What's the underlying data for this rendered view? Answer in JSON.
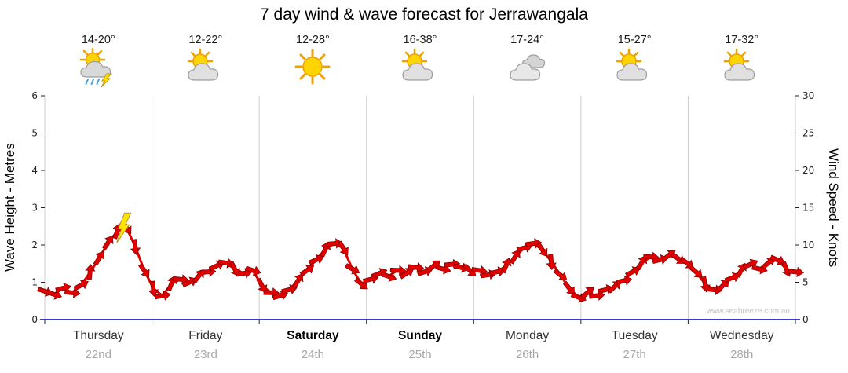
{
  "title": "7 day wind & wave forecast for Jerrawangala",
  "watermark": "www.seabreeze.com.au",
  "days": [
    {
      "name": "Thursday",
      "date": "22nd",
      "temp": "14-20°",
      "icon": "storm",
      "bold": false
    },
    {
      "name": "Friday",
      "date": "23rd",
      "temp": "12-22°",
      "icon": "sun-cloud",
      "bold": false
    },
    {
      "name": "Saturday",
      "date": "24th",
      "temp": "12-28°",
      "icon": "sunny",
      "bold": true
    },
    {
      "name": "Sunday",
      "date": "25th",
      "temp": "16-38°",
      "icon": "sun-cloud",
      "bold": true
    },
    {
      "name": "Monday",
      "date": "26th",
      "temp": "17-24°",
      "icon": "cloudy",
      "bold": false
    },
    {
      "name": "Tuesday",
      "date": "27th",
      "temp": "15-27°",
      "icon": "sun-cloud",
      "bold": false
    },
    {
      "name": "Wednesday",
      "date": "28th",
      "temp": "17-32°",
      "icon": "sun-cloud",
      "bold": false
    }
  ],
  "axes": {
    "left_label": "Wave Height - Metres",
    "left_ticks": [
      0,
      1,
      2,
      3,
      4,
      5,
      6
    ],
    "left_max": 6,
    "right_label": "Wind Speed - Knots",
    "right_ticks": [
      0,
      5,
      10,
      15,
      20,
      25,
      30
    ],
    "right_max": 30
  },
  "colors": {
    "wind": "#e10000",
    "wind_outline": "#7d0000",
    "baseline": "#3a3acc",
    "grid": "#cccccc",
    "tick": "#222222"
  },
  "chart_data": {
    "type": "line",
    "title": "7 day wind & wave forecast for Jerrawangala",
    "x_categories": [
      "Thursday 22nd",
      "Friday 23rd",
      "Saturday 24th",
      "Sunday 25th",
      "Monday 26th",
      "Tuesday 27th",
      "Wednesday 28th"
    ],
    "points_per_day": 12,
    "interval_hours": 2,
    "ylabel_left": "Wave Height - Metres",
    "ylim_left": [
      0,
      6
    ],
    "ylabel_right": "Wind Speed - Knots",
    "ylim_right": [
      0,
      30
    ],
    "legend": "none",
    "grid": "vertical-day-separators",
    "lightning_at_index": 9,
    "series": [
      {
        "name": "Wind Speed",
        "unit": "knots",
        "values": [
          3.8,
          3.4,
          4.2,
          3.6,
          4.6,
          6.3,
          8.2,
          10.3,
          11.8,
          12.4,
          9.8,
          6.6,
          4.2,
          3.2,
          4.8,
          5.4,
          5.0,
          5.8,
          6.4,
          7.2,
          7.6,
          6.8,
          6.2,
          6.6,
          4.6,
          3.6,
          3.2,
          4.0,
          5.2,
          6.6,
          8.0,
          9.4,
          10.2,
          9.6,
          6.8,
          4.8,
          5.4,
          6.2,
          5.8,
          6.6,
          6.2,
          7.0,
          6.4,
          7.2,
          6.8,
          7.4,
          7.0,
          6.6,
          6.6,
          6.0,
          6.4,
          7.2,
          8.4,
          9.6,
          10.2,
          9.4,
          7.8,
          6.0,
          4.2,
          3.0,
          3.6,
          3.2,
          4.0,
          4.4,
          5.2,
          6.4,
          7.6,
          8.4,
          8.0,
          8.6,
          8.2,
          7.6,
          6.4,
          4.8,
          4.0,
          4.6,
          5.6,
          6.6,
          7.4,
          6.8,
          7.6,
          8.0,
          6.8,
          6.4
        ]
      }
    ]
  }
}
